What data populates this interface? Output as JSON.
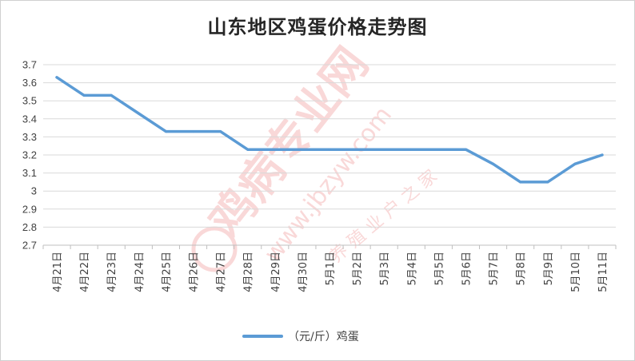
{
  "chart_data": {
    "type": "line",
    "title": "山东地区鸡蛋价格走势图",
    "xlabel": "",
    "ylabel": "",
    "categories": [
      "4月21日",
      "4月22日",
      "4月23日",
      "4月24日",
      "4月25日",
      "4月26日",
      "4月27日",
      "4月28日",
      "4月29日",
      "4月30日",
      "5月1日",
      "5月2日",
      "5月3日",
      "5月4日",
      "5月5日",
      "5月6日",
      "5月7日",
      "5月8日",
      "5月9日",
      "5月10日",
      "5月11日"
    ],
    "series": [
      {
        "name": "（元/斤）鸡蛋",
        "color": "#5b9bd5",
        "values": [
          3.63,
          3.53,
          3.53,
          3.43,
          3.33,
          3.33,
          3.33,
          3.23,
          3.23,
          3.23,
          3.23,
          3.23,
          3.23,
          3.23,
          3.23,
          3.23,
          3.15,
          3.05,
          3.05,
          3.15,
          3.2
        ]
      }
    ],
    "ylim": [
      2.7,
      3.7
    ],
    "yticks": [
      "3.7",
      "3.6",
      "3.5",
      "3.4",
      "3.3",
      "3.2",
      "3.1",
      "3",
      "2.9",
      "2.8",
      "2.7"
    ],
    "grid": true,
    "legend_position": "bottom"
  },
  "watermark": {
    "main": "鸡病专业网",
    "url": "www.jbzyw.com",
    "sub": "养 殖 业 户 之 家"
  }
}
